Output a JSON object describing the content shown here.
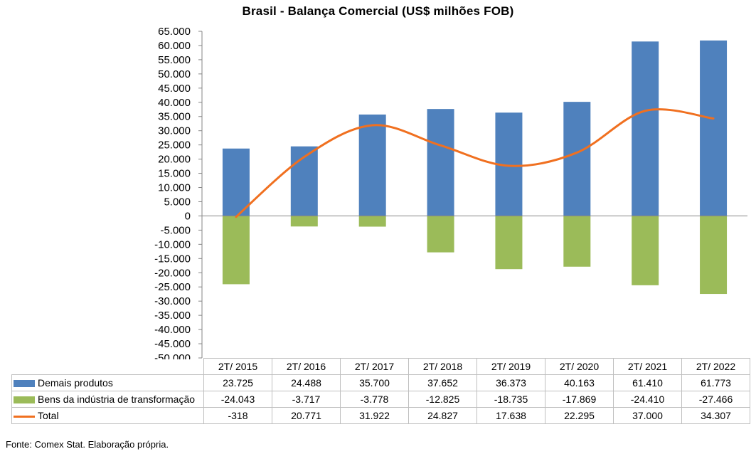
{
  "chart_data": {
    "type": "bar",
    "title": "Brasil - Balança Comercial (US$ milhões FOB)",
    "categories": [
      "2T/ 2015",
      "2T/ 2016",
      "2T/ 2017",
      "2T/ 2018",
      "2T/ 2019",
      "2T/ 2020",
      "2T/ 2021",
      "2T/ 2022"
    ],
    "series": [
      {
        "name": "Demais produtos",
        "kind": "bar",
        "color": "#4F81BD",
        "values": [
          23725,
          24488,
          35700,
          37652,
          36373,
          40163,
          61410,
          61773
        ],
        "labels": [
          "23.725",
          "24.488",
          "35.700",
          "37.652",
          "36.373",
          "40.163",
          "61.410",
          "61.773"
        ]
      },
      {
        "name": "Bens da indústria de transformação",
        "kind": "bar",
        "color": "#9BBB59",
        "values": [
          -24043,
          -3717,
          -3778,
          -12825,
          -18735,
          -17869,
          -24410,
          -27466
        ],
        "labels": [
          "-24.043",
          "-3.717",
          "-3.778",
          "-12.825",
          "-18.735",
          "-17.869",
          "-24.410",
          "-27.466"
        ]
      },
      {
        "name": "Total",
        "kind": "line",
        "color": "#F07020",
        "values": [
          -318,
          20771,
          31922,
          24827,
          17638,
          22295,
          37000,
          34307
        ],
        "labels": [
          "-318",
          "20.771",
          "31.922",
          "24.827",
          "17.638",
          "22.295",
          "37.000",
          "34.307"
        ]
      }
    ],
    "ylim": [
      -50000,
      65000
    ],
    "ytick_step": 5000,
    "ytick_labels": [
      "65.000",
      "60.000",
      "55.000",
      "50.000",
      "45.000",
      "40.000",
      "35.000",
      "30.000",
      "25.000",
      "20.000",
      "15.000",
      "10.000",
      "5.000",
      "0",
      "-5.000",
      "-10.000",
      "-15.000",
      "-20.000",
      "-25.000",
      "-30.000",
      "-35.000",
      "-40.000",
      "-45.000",
      "-50.000"
    ],
    "stacked": true,
    "grid": false,
    "legend": "data-table"
  },
  "source_note": "Fonte: Comex Stat. Elaboração própria."
}
